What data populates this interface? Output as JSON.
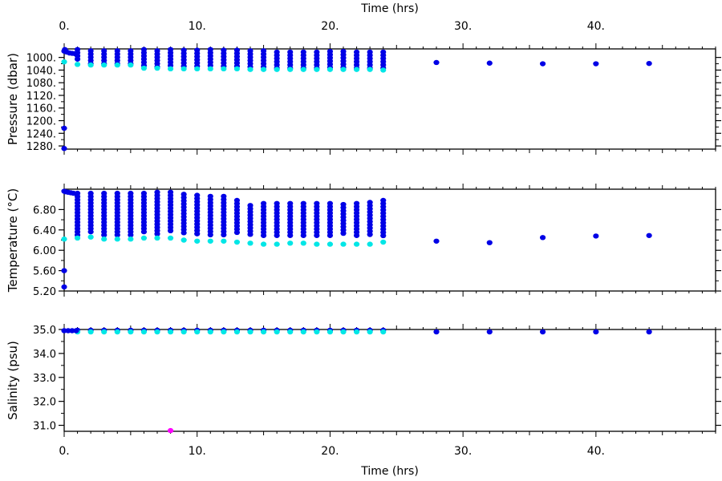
{
  "chart_data": [
    {
      "type": "scatter",
      "panel": "pressure",
      "ylabel": "Pressure (dbar)",
      "y_inverted": true,
      "ylim": [
        1290,
        973
      ],
      "yticks": [
        1000,
        1040,
        1080,
        1120,
        1160,
        1200,
        1240,
        1280
      ],
      "ytick_labels": [
        "1000.",
        "1040.",
        "1080.",
        "1120.",
        "1160.",
        "1200.",
        "1240.",
        "1280."
      ],
      "profile_times": [
        1,
        2,
        3,
        4,
        5,
        6,
        7,
        8,
        9,
        10,
        11,
        12,
        13,
        14,
        15,
        16,
        17,
        18,
        19,
        20,
        21,
        22,
        23,
        24
      ],
      "profile_top": [
        975,
        979,
        979,
        979,
        979,
        975,
        979,
        975,
        977,
        977,
        975,
        977,
        977,
        979,
        979,
        983,
        983,
        983,
        983,
        981,
        981,
        983,
        983,
        983
      ],
      "profile_bottom": [
        1014,
        1020,
        1020,
        1022,
        1022,
        1032,
        1032,
        1032,
        1032,
        1032,
        1032,
        1032,
        1032,
        1034,
        1034,
        1034,
        1034,
        1034,
        1034,
        1034,
        1034,
        1034,
        1034,
        1036
      ],
      "cyan_values": [
        1022,
        1024,
        1024,
        1024,
        1024,
        1034,
        1034,
        1036,
        1036,
        1036,
        1036,
        1036,
        1036,
        1038,
        1038,
        1038,
        1038,
        1038,
        1038,
        1038,
        1038,
        1038,
        1038,
        1040
      ],
      "extra_points": [
        {
          "x": 0.0,
          "y": 980,
          "color": "#0000e6"
        },
        {
          "x": 0.05,
          "y": 975,
          "color": "#0000e6"
        },
        {
          "x": 0.2,
          "y": 983,
          "color": "#0000e6"
        },
        {
          "x": 0.4,
          "y": 986,
          "color": "#0000e6"
        },
        {
          "x": 0.6,
          "y": 987,
          "color": "#0000e6"
        },
        {
          "x": 0.8,
          "y": 988,
          "color": "#0000e6"
        },
        {
          "x": 0.0,
          "y": 1014,
          "color": "#00e6e6"
        },
        {
          "x": 0.0,
          "y": 1224,
          "color": "#0000e6"
        },
        {
          "x": 0.0,
          "y": 1288,
          "color": "#0000e6"
        },
        {
          "x": 28,
          "y": 1016,
          "color": "#0000e6"
        },
        {
          "x": 32,
          "y": 1018,
          "color": "#0000e6"
        },
        {
          "x": 36,
          "y": 1020,
          "color": "#0000e6"
        },
        {
          "x": 40,
          "y": 1020,
          "color": "#0000e6"
        },
        {
          "x": 44,
          "y": 1019,
          "color": "#0000e6"
        }
      ]
    },
    {
      "type": "scatter",
      "panel": "temperature",
      "ylabel": "Temperature (°C)",
      "y_inverted": false,
      "ylim": [
        5.2,
        7.2
      ],
      "yticks": [
        5.2,
        5.6,
        6.0,
        6.4,
        6.8
      ],
      "ytick_labels": [
        "5.20",
        "5.60",
        "6.00",
        "6.40",
        "6.80"
      ],
      "profile_times": [
        1,
        2,
        3,
        4,
        5,
        6,
        7,
        8,
        9,
        10,
        11,
        12,
        13,
        14,
        15,
        16,
        17,
        18,
        19,
        20,
        21,
        22,
        23,
        24
      ],
      "profile_top": [
        7.12,
        7.12,
        7.12,
        7.12,
        7.12,
        7.12,
        7.14,
        7.14,
        7.1,
        7.08,
        7.06,
        7.06,
        6.98,
        6.88,
        6.92,
        6.92,
        6.92,
        6.92,
        6.92,
        6.92,
        6.9,
        6.92,
        6.94,
        6.98
      ],
      "profile_bottom": [
        6.3,
        6.32,
        6.3,
        6.3,
        6.3,
        6.32,
        6.3,
        6.34,
        6.3,
        6.3,
        6.3,
        6.3,
        6.3,
        6.28,
        6.28,
        6.28,
        6.28,
        6.28,
        6.28,
        6.28,
        6.28,
        6.28,
        6.28,
        6.26
      ],
      "cyan_values": [
        6.24,
        6.26,
        6.22,
        6.22,
        6.22,
        6.24,
        6.24,
        6.24,
        6.2,
        6.18,
        6.18,
        6.18,
        6.16,
        6.14,
        6.12,
        6.12,
        6.14,
        6.14,
        6.12,
        6.12,
        6.12,
        6.12,
        6.12,
        6.16
      ],
      "extra_points": [
        {
          "x": 0.0,
          "y": 7.16,
          "color": "#0000e6"
        },
        {
          "x": 0.1,
          "y": 7.15,
          "color": "#0000e6"
        },
        {
          "x": 0.3,
          "y": 7.14,
          "color": "#0000e6"
        },
        {
          "x": 0.5,
          "y": 7.13,
          "color": "#0000e6"
        },
        {
          "x": 0.7,
          "y": 7.12,
          "color": "#0000e6"
        },
        {
          "x": 0.0,
          "y": 6.22,
          "color": "#00e6e6"
        },
        {
          "x": 0.0,
          "y": 5.6,
          "color": "#0000e6"
        },
        {
          "x": 0.0,
          "y": 5.28,
          "color": "#0000e6"
        },
        {
          "x": 28,
          "y": 6.18,
          "color": "#0000e6"
        },
        {
          "x": 32,
          "y": 6.15,
          "color": "#0000e6"
        },
        {
          "x": 36,
          "y": 6.25,
          "color": "#0000e6"
        },
        {
          "x": 40,
          "y": 6.28,
          "color": "#0000e6"
        },
        {
          "x": 44,
          "y": 6.29,
          "color": "#0000e6"
        }
      ]
    },
    {
      "type": "scatter",
      "panel": "salinity",
      "ylabel": "Salinity (psu)",
      "y_inverted": false,
      "ylim": [
        30.75,
        35.0
      ],
      "yticks": [
        31.0,
        32.0,
        33.0,
        34.0,
        35.0
      ],
      "ytick_labels": [
        "31.0",
        "32.0",
        "33.0",
        "34.0",
        "35.0"
      ],
      "profile_times": [
        1,
        2,
        3,
        4,
        5,
        6,
        7,
        8,
        9,
        10,
        11,
        12,
        13,
        14,
        15,
        16,
        17,
        18,
        19,
        20,
        21,
        22,
        23,
        24
      ],
      "profile_top": [
        34.97,
        34.97,
        34.97,
        34.97,
        34.97,
        34.97,
        34.97,
        34.97,
        34.97,
        34.97,
        34.97,
        34.97,
        34.97,
        34.97,
        34.97,
        34.97,
        34.97,
        34.97,
        34.97,
        34.97,
        34.97,
        34.97,
        34.97,
        34.97
      ],
      "profile_bottom": [
        34.92,
        34.92,
        34.92,
        34.92,
        34.92,
        34.92,
        34.92,
        34.92,
        34.92,
        34.92,
        34.92,
        34.92,
        34.92,
        34.92,
        34.92,
        34.92,
        34.92,
        34.92,
        34.92,
        34.92,
        34.92,
        34.92,
        34.92,
        34.92
      ],
      "cyan_values": [
        34.9,
        34.9,
        34.9,
        34.9,
        34.9,
        34.9,
        34.9,
        34.9,
        34.9,
        34.9,
        34.9,
        34.9,
        34.9,
        34.9,
        34.9,
        34.9,
        34.9,
        34.9,
        34.9,
        34.9,
        34.9,
        34.9,
        34.9,
        34.9
      ],
      "extra_points": [
        {
          "x": 0.0,
          "y": 34.95,
          "color": "#0000e6"
        },
        {
          "x": 0.3,
          "y": 34.95,
          "color": "#0000e6"
        },
        {
          "x": 0.6,
          "y": 34.95,
          "color": "#0000e6"
        },
        {
          "x": 0.9,
          "y": 34.95,
          "color": "#0000e6"
        },
        {
          "x": 8,
          "y": 30.78,
          "color": "#ff00ff"
        },
        {
          "x": 28,
          "y": 34.9,
          "color": "#0000e6"
        },
        {
          "x": 32,
          "y": 34.9,
          "color": "#0000e6"
        },
        {
          "x": 36,
          "y": 34.9,
          "color": "#0000e6"
        },
        {
          "x": 40,
          "y": 34.9,
          "color": "#0000e6"
        },
        {
          "x": 44,
          "y": 34.9,
          "color": "#0000e6"
        }
      ]
    }
  ],
  "shared_x": {
    "label": "Time (hrs)",
    "xlim": [
      0,
      49
    ],
    "ticks": [
      0,
      10,
      20,
      30,
      40
    ],
    "tick_labels": [
      "0.",
      "10.",
      "20.",
      "30.",
      "40."
    ]
  },
  "colors": {
    "primary_points": "#0000e6",
    "bottom_points": "#00e6e6",
    "outlier_point": "#ff00ff",
    "axes": "#000000"
  }
}
